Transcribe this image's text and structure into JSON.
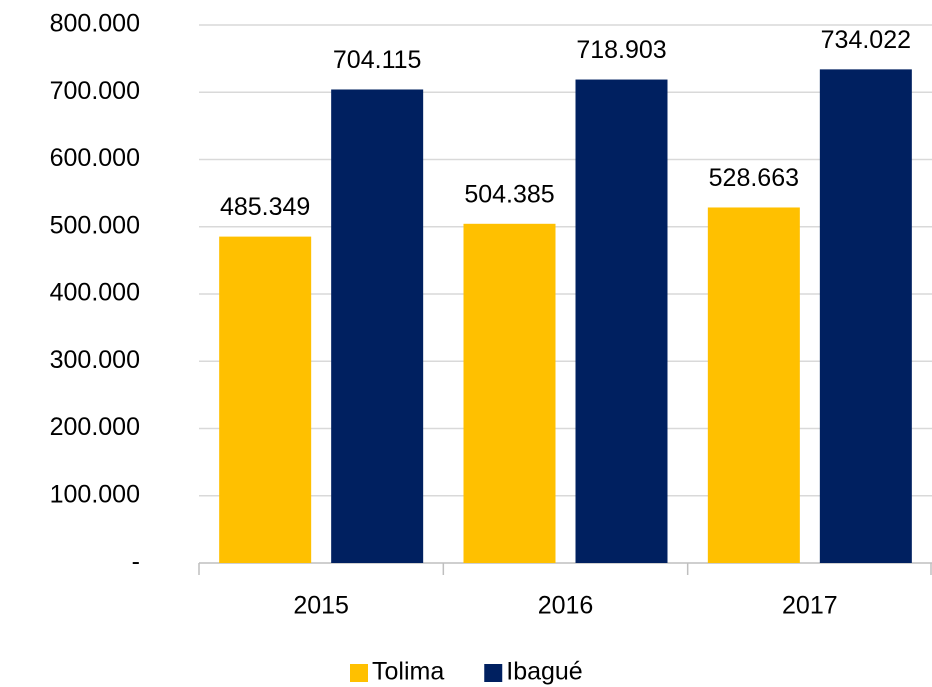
{
  "chart_data": {
    "type": "bar",
    "categories": [
      "2015",
      "2016",
      "2017"
    ],
    "series": [
      {
        "name": "Tolima",
        "color": "#FFC000",
        "values": [
          485349,
          504385,
          528663
        ],
        "value_labels": [
          "485.349",
          "504.385",
          "528.663"
        ]
      },
      {
        "name": "Ibagué",
        "color": "#002060",
        "values": [
          704115,
          718903,
          734022
        ],
        "value_labels": [
          "704.115",
          "718.903",
          "734.022"
        ]
      }
    ],
    "ylim": [
      0,
      800000
    ],
    "yticks": [
      {
        "value": 0,
        "label": "-"
      },
      {
        "value": 100000,
        "label": "100.000"
      },
      {
        "value": 200000,
        "label": "200.000"
      },
      {
        "value": 300000,
        "label": "300.000"
      },
      {
        "value": 400000,
        "label": "400.000"
      },
      {
        "value": 500000,
        "label": "500.000"
      },
      {
        "value": 600000,
        "label": "600.000"
      },
      {
        "value": 700000,
        "label": "700.000"
      },
      {
        "value": 800000,
        "label": "800.000"
      }
    ],
    "grid": true,
    "legend": "bottom"
  }
}
